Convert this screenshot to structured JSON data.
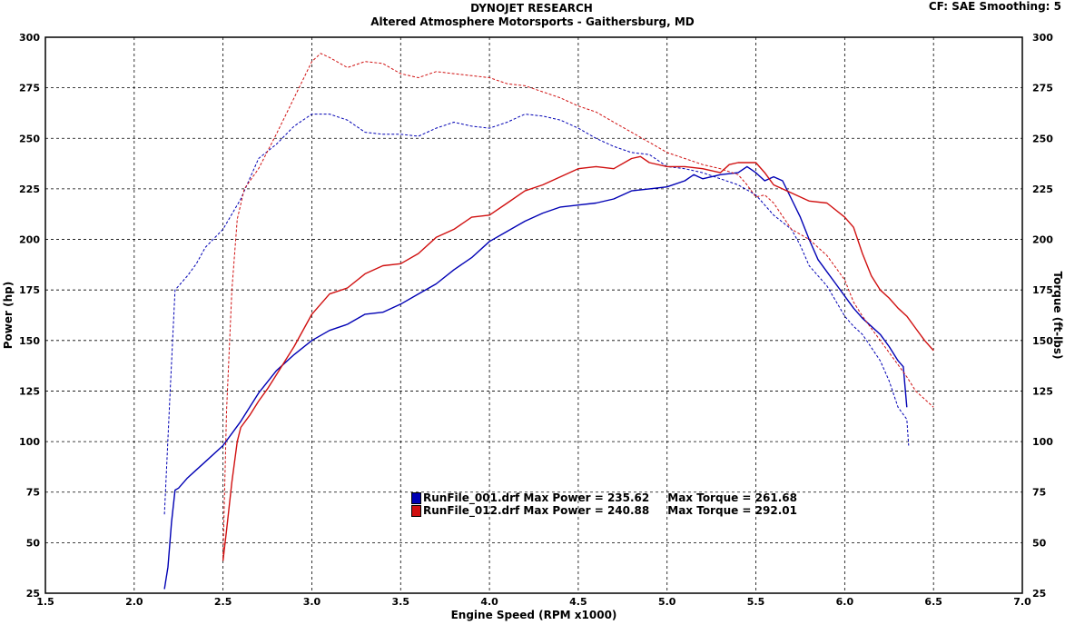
{
  "header": {
    "title": "DYNOJET RESEARCH",
    "subtitle": "Altered Atmosphere Motorsports - Gaithersburg, MD",
    "settings": "CF: SAE  Smoothing: 5"
  },
  "chart_data": {
    "type": "line",
    "xlabel": "Engine Speed (RPM x1000)",
    "ylabel": "Power (hp)",
    "y2label": "Torque (ft-lbs)",
    "xlim": [
      1.5,
      7.0
    ],
    "ylim": [
      25,
      300
    ],
    "y2lim": [
      25,
      300
    ],
    "x_ticks": [
      "1.5",
      "2.0",
      "2.5",
      "3.0",
      "3.5",
      "4.0",
      "4.5",
      "5.0",
      "5.5",
      "6.0",
      "6.5",
      "7.0"
    ],
    "y_ticks": [
      "25",
      "50",
      "75",
      "100",
      "125",
      "150",
      "175",
      "200",
      "225",
      "250",
      "275",
      "300"
    ],
    "grid": true,
    "legend_position": "bottom-center",
    "colors": {
      "run1": "#0000b4",
      "run2": "#d01010"
    },
    "series": [
      {
        "name": "RunFile_001.drf",
        "measure": "power",
        "style": "solid",
        "color": "#0000b4",
        "points": [
          [
            2.17,
            27
          ],
          [
            2.19,
            38
          ],
          [
            2.21,
            60
          ],
          [
            2.23,
            76
          ],
          [
            2.25,
            77
          ],
          [
            2.3,
            82
          ],
          [
            2.35,
            86
          ],
          [
            2.4,
            90
          ],
          [
            2.5,
            98
          ],
          [
            2.6,
            110
          ],
          [
            2.7,
            124
          ],
          [
            2.8,
            135
          ],
          [
            2.9,
            143
          ],
          [
            3.0,
            150
          ],
          [
            3.1,
            155
          ],
          [
            3.2,
            158
          ],
          [
            3.3,
            163
          ],
          [
            3.4,
            164
          ],
          [
            3.5,
            168
          ],
          [
            3.6,
            173
          ],
          [
            3.7,
            178
          ],
          [
            3.8,
            185
          ],
          [
            3.9,
            191
          ],
          [
            4.0,
            199
          ],
          [
            4.1,
            204
          ],
          [
            4.2,
            209
          ],
          [
            4.3,
            213
          ],
          [
            4.4,
            216
          ],
          [
            4.5,
            217
          ],
          [
            4.6,
            218
          ],
          [
            4.7,
            220
          ],
          [
            4.8,
            224
          ],
          [
            4.9,
            225
          ],
          [
            5.0,
            226
          ],
          [
            5.1,
            229
          ],
          [
            5.15,
            232
          ],
          [
            5.2,
            230
          ],
          [
            5.3,
            232
          ],
          [
            5.4,
            233
          ],
          [
            5.45,
            236
          ],
          [
            5.5,
            233
          ],
          [
            5.55,
            229
          ],
          [
            5.6,
            231
          ],
          [
            5.65,
            229
          ],
          [
            5.7,
            220
          ],
          [
            5.75,
            211
          ],
          [
            5.8,
            200
          ],
          [
            5.85,
            190
          ],
          [
            5.9,
            184
          ],
          [
            5.95,
            178
          ],
          [
            6.0,
            172
          ],
          [
            6.05,
            166
          ],
          [
            6.1,
            161
          ],
          [
            6.15,
            157
          ],
          [
            6.2,
            153
          ],
          [
            6.25,
            147
          ],
          [
            6.3,
            140
          ],
          [
            6.33,
            137
          ],
          [
            6.35,
            117
          ]
        ]
      },
      {
        "name": "RunFile_001.drf",
        "measure": "torque",
        "style": "dashed",
        "color": "#0000b4",
        "points": [
          [
            2.17,
            64
          ],
          [
            2.2,
            120
          ],
          [
            2.23,
            175
          ],
          [
            2.26,
            178
          ],
          [
            2.3,
            182
          ],
          [
            2.35,
            188
          ],
          [
            2.4,
            196
          ],
          [
            2.5,
            205
          ],
          [
            2.6,
            220
          ],
          [
            2.7,
            240
          ],
          [
            2.8,
            247
          ],
          [
            2.9,
            256
          ],
          [
            3.0,
            262
          ],
          [
            3.1,
            262
          ],
          [
            3.2,
            259
          ],
          [
            3.3,
            253
          ],
          [
            3.4,
            252
          ],
          [
            3.5,
            252
          ],
          [
            3.6,
            251
          ],
          [
            3.7,
            255
          ],
          [
            3.8,
            258
          ],
          [
            3.9,
            256
          ],
          [
            4.0,
            255
          ],
          [
            4.1,
            258
          ],
          [
            4.2,
            262
          ],
          [
            4.3,
            261
          ],
          [
            4.4,
            259
          ],
          [
            4.5,
            255
          ],
          [
            4.6,
            250
          ],
          [
            4.7,
            246
          ],
          [
            4.8,
            243
          ],
          [
            4.9,
            242
          ],
          [
            5.0,
            236
          ],
          [
            5.1,
            235
          ],
          [
            5.2,
            233
          ],
          [
            5.3,
            230
          ],
          [
            5.4,
            227
          ],
          [
            5.5,
            222
          ],
          [
            5.55,
            217
          ],
          [
            5.6,
            212
          ],
          [
            5.7,
            205
          ],
          [
            5.75,
            197
          ],
          [
            5.8,
            187
          ],
          [
            5.9,
            177
          ],
          [
            6.0,
            162
          ],
          [
            6.05,
            157
          ],
          [
            6.1,
            153
          ],
          [
            6.2,
            140
          ],
          [
            6.25,
            130
          ],
          [
            6.3,
            117
          ],
          [
            6.35,
            111
          ],
          [
            6.36,
            98
          ]
        ]
      },
      {
        "name": "RunFile_012.drf",
        "measure": "power",
        "style": "solid",
        "color": "#d01010",
        "points": [
          [
            2.5,
            41
          ],
          [
            2.52,
            56
          ],
          [
            2.55,
            80
          ],
          [
            2.58,
            100
          ],
          [
            2.6,
            107
          ],
          [
            2.65,
            113
          ],
          [
            2.7,
            120
          ],
          [
            2.75,
            126
          ],
          [
            2.8,
            133
          ],
          [
            2.9,
            147
          ],
          [
            3.0,
            163
          ],
          [
            3.1,
            173
          ],
          [
            3.2,
            176
          ],
          [
            3.3,
            183
          ],
          [
            3.4,
            187
          ],
          [
            3.5,
            188
          ],
          [
            3.6,
            193
          ],
          [
            3.7,
            201
          ],
          [
            3.8,
            205
          ],
          [
            3.9,
            211
          ],
          [
            4.0,
            212
          ],
          [
            4.1,
            218
          ],
          [
            4.2,
            224
          ],
          [
            4.3,
            227
          ],
          [
            4.4,
            231
          ],
          [
            4.5,
            235
          ],
          [
            4.6,
            236
          ],
          [
            4.7,
            235
          ],
          [
            4.8,
            240
          ],
          [
            4.85,
            241
          ],
          [
            4.9,
            238
          ],
          [
            5.0,
            236
          ],
          [
            5.1,
            236
          ],
          [
            5.2,
            235
          ],
          [
            5.3,
            233
          ],
          [
            5.35,
            237
          ],
          [
            5.4,
            238
          ],
          [
            5.5,
            238
          ],
          [
            5.55,
            233
          ],
          [
            5.6,
            227
          ],
          [
            5.7,
            223
          ],
          [
            5.8,
            219
          ],
          [
            5.9,
            218
          ],
          [
            6.0,
            211
          ],
          [
            6.05,
            206
          ],
          [
            6.1,
            193
          ],
          [
            6.15,
            182
          ],
          [
            6.2,
            175
          ],
          [
            6.25,
            171
          ],
          [
            6.3,
            166
          ],
          [
            6.35,
            162
          ],
          [
            6.4,
            156
          ],
          [
            6.45,
            150
          ],
          [
            6.5,
            145
          ]
        ]
      },
      {
        "name": "RunFile_012.drf",
        "measure": "torque",
        "style": "dashed",
        "color": "#d01010",
        "points": [
          [
            2.5,
            42
          ],
          [
            2.52,
            115
          ],
          [
            2.55,
            175
          ],
          [
            2.58,
            210
          ],
          [
            2.62,
            225
          ],
          [
            2.7,
            235
          ],
          [
            2.8,
            252
          ],
          [
            2.9,
            270
          ],
          [
            3.0,
            288
          ],
          [
            3.05,
            292
          ],
          [
            3.1,
            290
          ],
          [
            3.2,
            285
          ],
          [
            3.3,
            288
          ],
          [
            3.4,
            287
          ],
          [
            3.5,
            282
          ],
          [
            3.6,
            280
          ],
          [
            3.7,
            283
          ],
          [
            3.8,
            282
          ],
          [
            3.9,
            281
          ],
          [
            4.0,
            280
          ],
          [
            4.1,
            277
          ],
          [
            4.2,
            276
          ],
          [
            4.3,
            273
          ],
          [
            4.4,
            270
          ],
          [
            4.5,
            266
          ],
          [
            4.6,
            263
          ],
          [
            4.7,
            258
          ],
          [
            4.8,
            253
          ],
          [
            4.9,
            248
          ],
          [
            5.0,
            243
          ],
          [
            5.1,
            240
          ],
          [
            5.2,
            237
          ],
          [
            5.3,
            235
          ],
          [
            5.4,
            232
          ],
          [
            5.45,
            227
          ],
          [
            5.5,
            221
          ],
          [
            5.55,
            222
          ],
          [
            5.6,
            218
          ],
          [
            5.7,
            205
          ],
          [
            5.8,
            200
          ],
          [
            5.9,
            192
          ],
          [
            6.0,
            180
          ],
          [
            6.05,
            169
          ],
          [
            6.1,
            162
          ],
          [
            6.2,
            150
          ],
          [
            6.3,
            138
          ],
          [
            6.35,
            132
          ],
          [
            6.4,
            125
          ],
          [
            6.45,
            121
          ],
          [
            6.5,
            117
          ]
        ]
      }
    ],
    "legend": [
      {
        "label": "RunFile_001.drf Max Power = 235.62",
        "torque": "Max Torque = 261.68",
        "color": "#0000b4"
      },
      {
        "label": "RunFile_012.drf Max Power = 240.88",
        "torque": "Max Torque = 292.01",
        "color": "#d01010"
      }
    ]
  }
}
